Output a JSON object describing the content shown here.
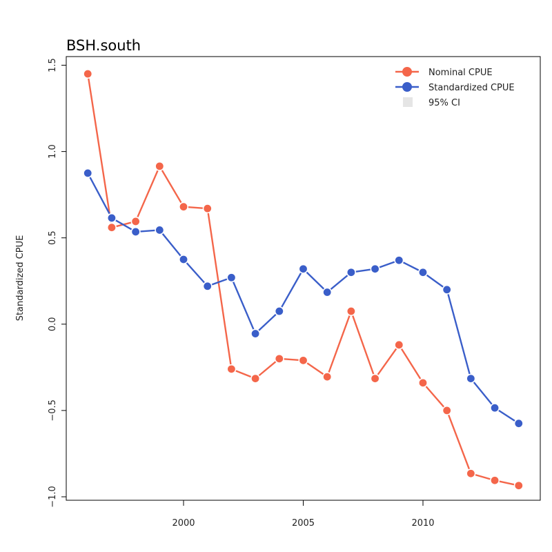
{
  "chart_data": {
    "type": "line",
    "title": "BSH.south",
    "xlabel": "",
    "ylabel": "Standardized CPUE",
    "x": [
      1996,
      1997,
      1998,
      1999,
      2000,
      2001,
      2002,
      2003,
      2004,
      2005,
      2006,
      2007,
      2008,
      2009,
      2010,
      2011,
      2012,
      2013,
      2014
    ],
    "xlim": [
      1995.1,
      2014.9
    ],
    "ylim": [
      -1.02,
      1.55
    ],
    "xticks": [
      2000,
      2005,
      2010
    ],
    "yticks": [
      -1.0,
      -0.5,
      0.0,
      0.5,
      1.0,
      1.5
    ],
    "ytick_labels": [
      "−1.0",
      "−0.5",
      "0.0",
      "0.5",
      "1.0",
      "1.5"
    ],
    "grid": false,
    "legend_position": "top-right",
    "series": [
      {
        "name": "Nominal CPUE",
        "color": "#f4664a",
        "values": [
          1.45,
          0.56,
          0.595,
          0.915,
          0.68,
          0.67,
          -0.26,
          -0.315,
          -0.2,
          -0.21,
          -0.305,
          0.075,
          -0.315,
          -0.12,
          -0.34,
          -0.5,
          -0.865,
          -0.905,
          -0.935
        ]
      },
      {
        "name": "Standardized CPUE",
        "color": "#3a5ec9",
        "values": [
          0.875,
          0.615,
          0.535,
          0.545,
          0.375,
          0.22,
          0.27,
          -0.055,
          0.075,
          0.32,
          0.185,
          0.3,
          0.32,
          0.37,
          0.3,
          0.2,
          -0.315,
          -0.485,
          -0.575
        ]
      }
    ],
    "ci_legend": {
      "label": "95% CI",
      "color": "#e5e5e5"
    }
  }
}
